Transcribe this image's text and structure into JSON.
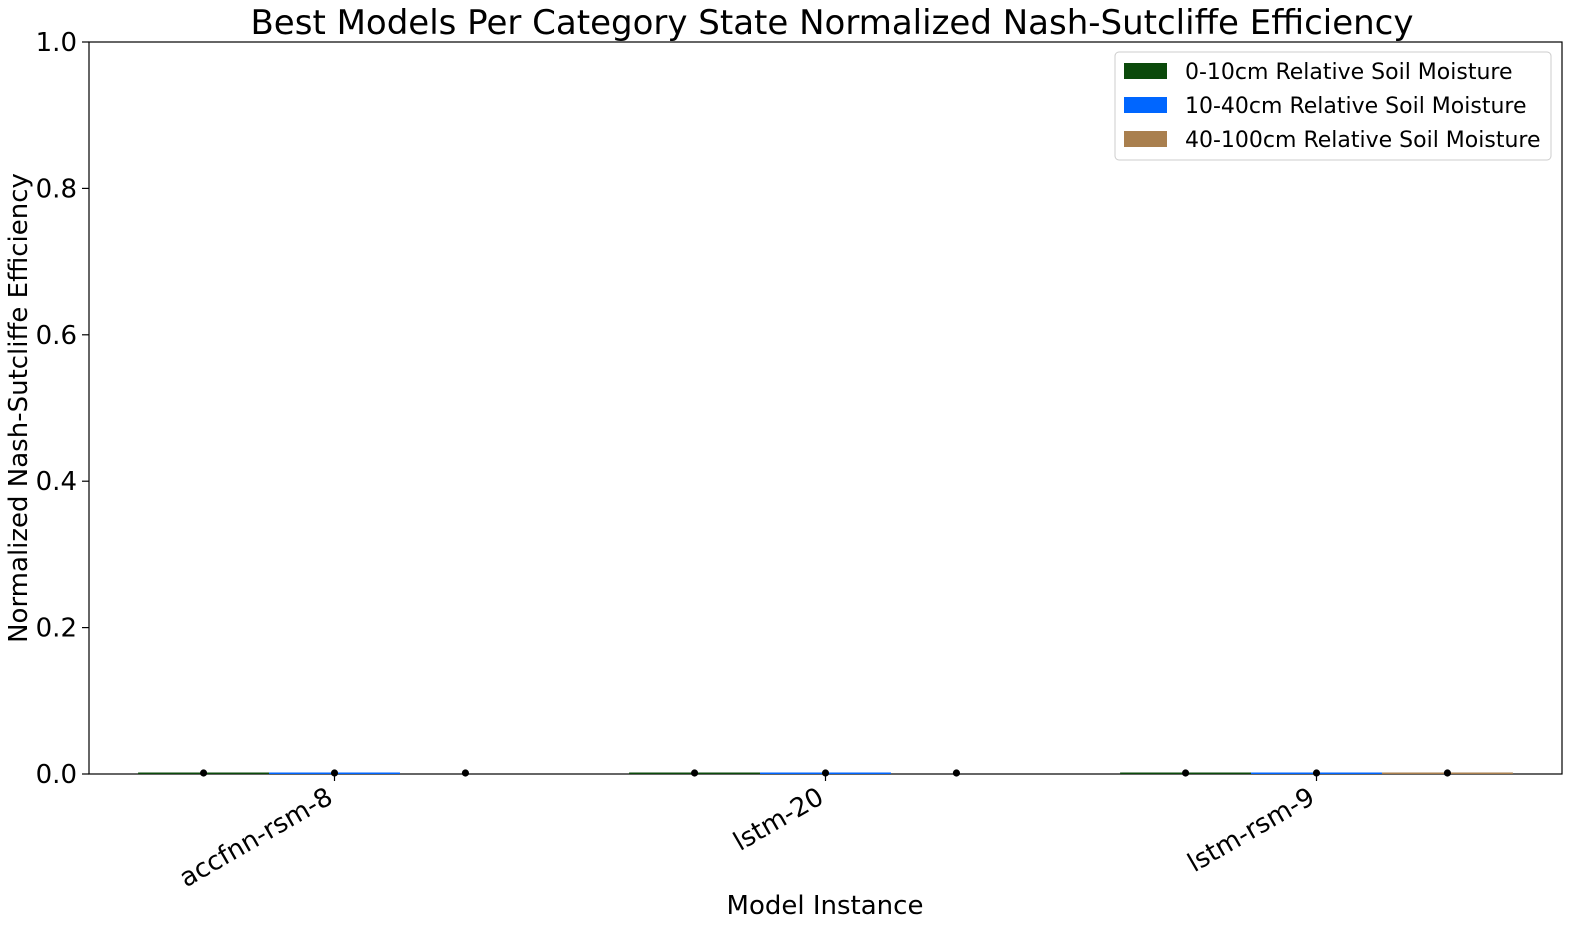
{
  "chart_data": {
    "type": "bar",
    "title": "Best Models Per Category State Normalized Nash-Sutcliffe Efficiency",
    "xlabel": "Model Instance",
    "ylabel": "Normalized Nash-Sutcliffe Efficiency",
    "ylim": [
      0,
      1.0
    ],
    "yticks": [
      "0.0",
      "0.2",
      "0.4",
      "0.6",
      "0.8",
      "1.0"
    ],
    "categories": [
      "accfnn-rsm-8",
      "lstm-20",
      "lstm-rsm-9"
    ],
    "series": [
      {
        "name": "0-10cm Relative Soil Moisture",
        "color": "#0b4a0b",
        "values": [
          0.0,
          0.0,
          0.0
        ],
        "errors": [
          0.001,
          0.001,
          0.001
        ]
      },
      {
        "name": "10-40cm Relative Soil Moisture",
        "color": "#0066ff",
        "values": [
          0.0,
          0.0,
          0.0
        ],
        "errors": [
          0.001,
          0.001,
          0.001
        ]
      },
      {
        "name": "40-100cm Relative Soil Moisture",
        "color": "#a97f4e",
        "values": [
          null,
          null,
          0.0
        ],
        "errors": [
          0.0,
          0.0,
          0.001
        ]
      }
    ],
    "grid": false,
    "legend_position": "top-right"
  }
}
